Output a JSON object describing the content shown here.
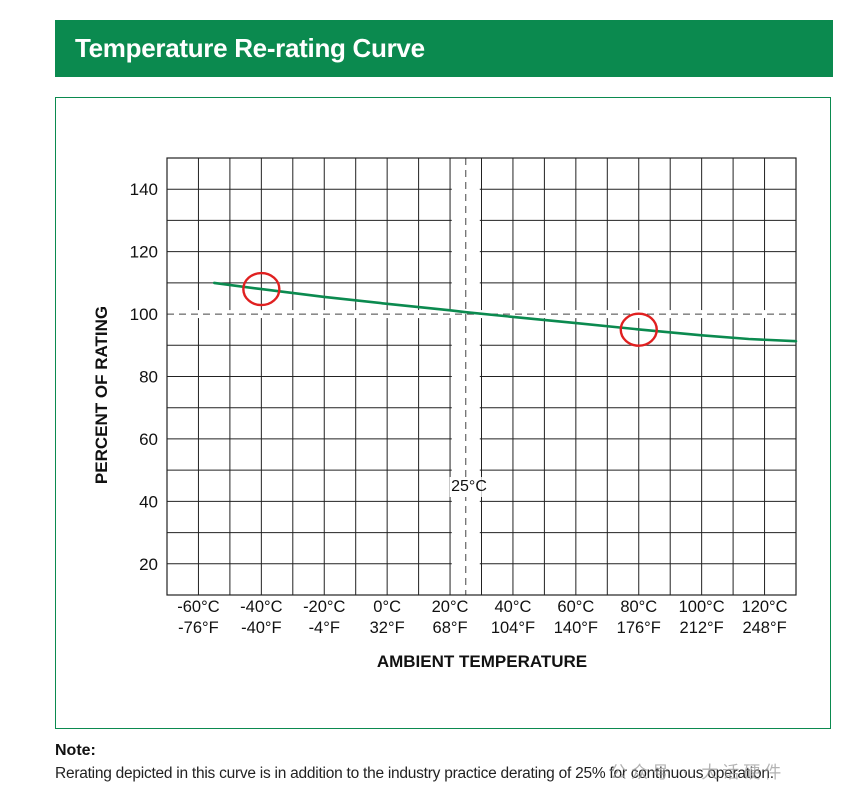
{
  "header": {
    "title": "Temperature Re-rating Curve"
  },
  "colors": {
    "header_bg": "#0b8a4f",
    "curve": "#0b8a4f",
    "highlight": "#e02020",
    "grid": "#222222"
  },
  "chart_data": {
    "type": "line",
    "xlabel": "AMBIENT TEMPERATURE",
    "ylabel": "PERCENT OF RATING",
    "xlim": [
      -70,
      130
    ],
    "ylim": [
      10,
      150
    ],
    "x_ticks": [
      -60,
      -40,
      -20,
      0,
      20,
      40,
      60,
      80,
      100,
      120
    ],
    "x_tick_labels": [
      {
        "c": "-60°C",
        "f": "-76°F"
      },
      {
        "c": "-40°C",
        "f": "-40°F"
      },
      {
        "c": "-20°C",
        "f": "-4°F"
      },
      {
        "c": "0°C",
        "f": "32°F"
      },
      {
        "c": "20°C",
        "f": "68°F"
      },
      {
        "c": "40°C",
        "f": "104°F"
      },
      {
        "c": "60°C",
        "f": "140°F"
      },
      {
        "c": "80°C",
        "f": "176°F"
      },
      {
        "c": "100°C",
        "f": "212°F"
      },
      {
        "c": "120°C",
        "f": "248°F"
      }
    ],
    "y_ticks": [
      20,
      40,
      60,
      80,
      100,
      120,
      140
    ],
    "y_tick_labels": [
      "20",
      "40",
      "60",
      "80",
      "100",
      "120",
      "140"
    ],
    "reference_lines": {
      "x": 25,
      "y": 100,
      "x_label": "25°C"
    },
    "series": [
      {
        "x": [
          -55,
          -40,
          -20,
          0,
          20,
          25,
          40,
          60,
          80,
          100,
          115,
          130
        ],
        "y": [
          110,
          108,
          105.5,
          103.3,
          101.2,
          100.6,
          99.1,
          97.1,
          95.1,
          93.2,
          92,
          91.3
        ]
      }
    ],
    "highlights": [
      {
        "x": -40,
        "y": 108
      },
      {
        "x": 80,
        "y": 95
      }
    ],
    "grid": true,
    "legend": "none"
  },
  "note": {
    "label": "Note:",
    "text": "Rerating depicted in this curve is in addition to the industry practice derating of 25% for continuous operation."
  },
  "watermark": "公众号 · 大话硬件"
}
